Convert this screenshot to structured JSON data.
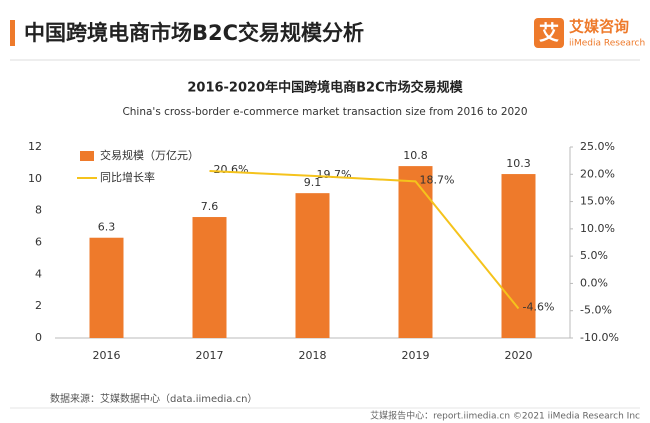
{
  "header": {
    "title": "中国跨境电商市场B2C交易规模分析",
    "logo_icon": "艾",
    "logo_name": "艾媒咨询",
    "logo_sub": "iiMedia Research"
  },
  "chart_data": {
    "type": "bar_line",
    "title": "2016-2020年中国跨境电商B2C市场交易规模",
    "subtitle": "China's cross-border e-commerce market transaction size from 2016 to 2020",
    "categories": [
      "2016",
      "2017",
      "2018",
      "2019",
      "2020"
    ],
    "series": [
      {
        "name": "交易规模（万亿元）",
        "type": "bar",
        "color": "#ee7a2b",
        "values": [
          6.3,
          7.6,
          9.1,
          10.8,
          10.3
        ]
      },
      {
        "name": "同比增长率",
        "type": "line",
        "axis": "y2",
        "color": "#f5c31c",
        "values": [
          null,
          20.6,
          19.7,
          18.7,
          -4.6
        ],
        "value_labels": [
          null,
          "20.6%",
          "19.7%",
          "18.7%",
          "-4.6%"
        ]
      }
    ],
    "ylim": [
      0,
      12
    ],
    "yticks": [
      0,
      2,
      4,
      6,
      8,
      10,
      12
    ],
    "y2lim": [
      -10,
      25
    ],
    "y2ticks": [
      {
        "value": -10,
        "label": "-10.0%"
      },
      {
        "value": -5,
        "label": "-5.0%"
      },
      {
        "value": 0,
        "label": "0.0%"
      },
      {
        "value": 5,
        "label": "5.0%"
      },
      {
        "value": 10,
        "label": "10.0%"
      },
      {
        "value": 15,
        "label": "15.0%"
      },
      {
        "value": 20,
        "label": "20.0%"
      },
      {
        "value": 25,
        "label": "25.0%"
      }
    ],
    "legend": "upper left",
    "grid": false
  },
  "footer": {
    "source": "数据来源：艾媒数据中心（data.iimedia.cn）",
    "credit": "艾媒报告中心：report.iimedia.cn ©2021 iiMedia Research Inc"
  }
}
